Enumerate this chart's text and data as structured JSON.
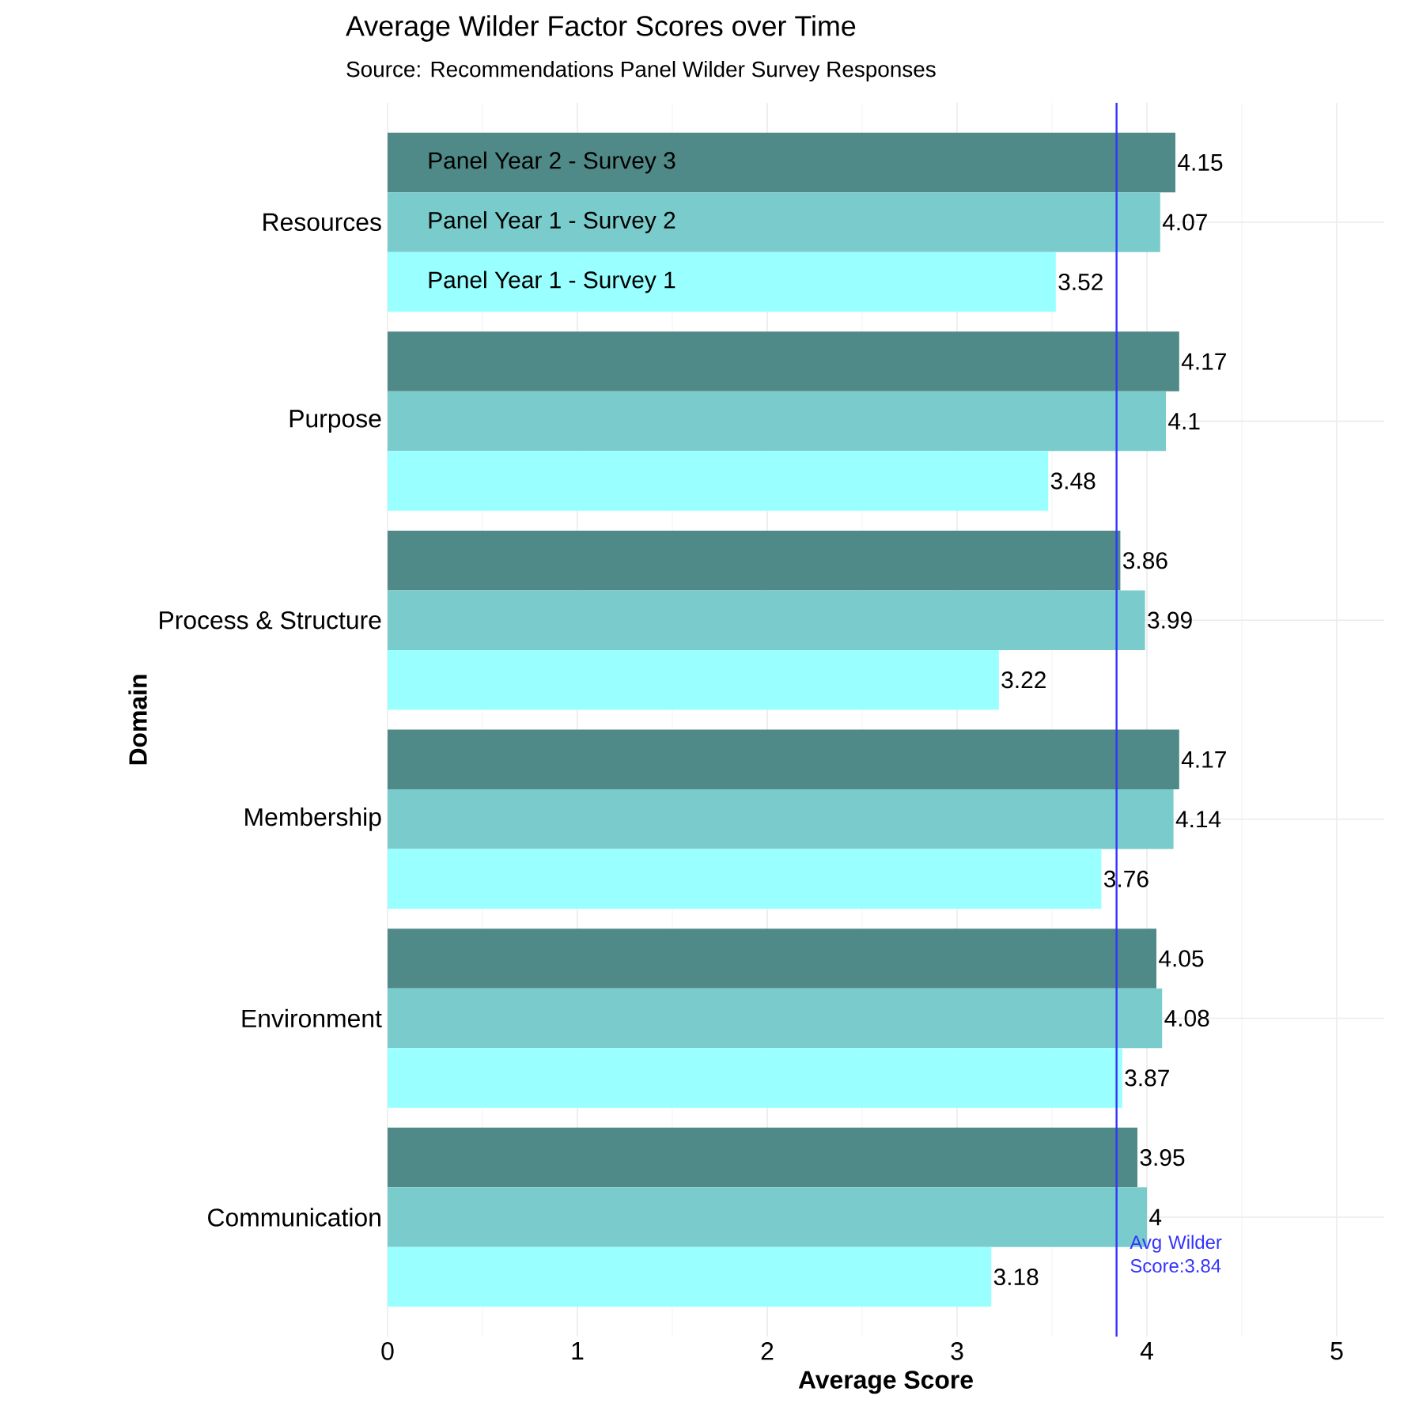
{
  "chart_data": {
    "type": "bar",
    "orientation": "horizontal",
    "title": "Average Wilder Factor Scores over Time",
    "subtitle": "Source: Recommendations Panel Wilder Survey Responses",
    "xlabel": "Average Score",
    "ylabel": "Domain",
    "categories": [
      "Resources",
      "Purpose",
      "Process & Structure",
      "Membership",
      "Environment",
      "Communication"
    ],
    "series": [
      {
        "name": "Panel Year 2 - Survey 3",
        "color": "#508a88",
        "values": [
          4.15,
          4.17,
          3.86,
          4.17,
          4.05,
          3.95
        ]
      },
      {
        "name": "Panel Year 1 - Survey 2",
        "color": "#7acccc",
        "values": [
          4.07,
          4.1,
          3.99,
          4.14,
          4.08,
          4
        ]
      },
      {
        "name": "Panel Year 1 - Survey 1",
        "color": "#99ffff",
        "values": [
          3.52,
          3.48,
          3.22,
          3.76,
          3.87,
          3.18
        ]
      }
    ],
    "xlim": [
      0,
      5.25
    ],
    "xticks": [
      0,
      1,
      2,
      3,
      4,
      5
    ],
    "grid": true,
    "data_labels": true,
    "ref_lines": [
      {
        "axis": "x",
        "value": 3.84,
        "label": "Avg Wilder Score:3.84",
        "color": "#3333ff"
      }
    ]
  }
}
